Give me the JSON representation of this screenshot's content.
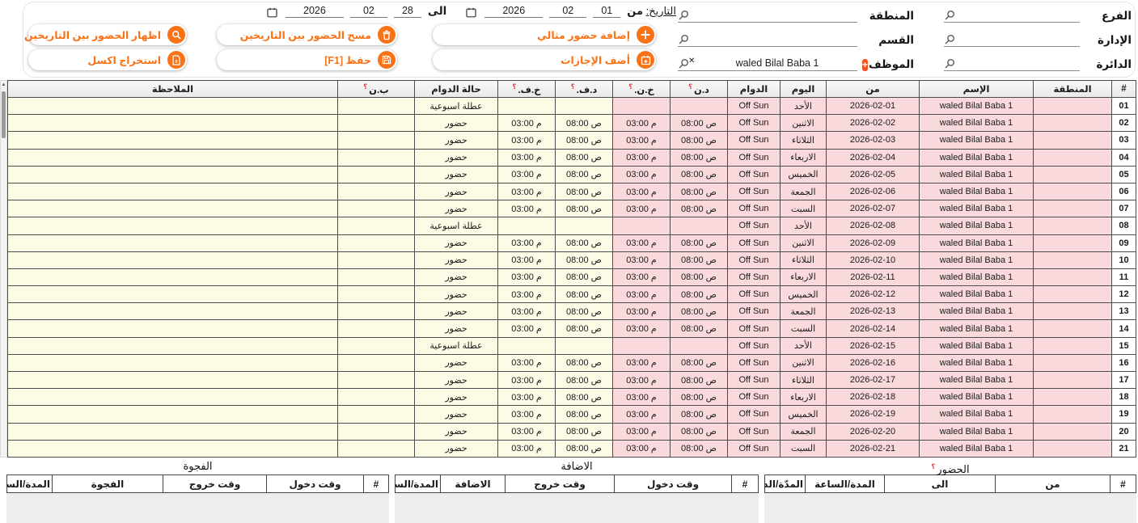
{
  "colors": {
    "accent": "#f97316",
    "pink_cell": "#f9d9dc",
    "cream_cell": "#fbfbe6",
    "required_mark": "#e53945"
  },
  "q_mark": "؟",
  "filters": {
    "branch": {
      "label": "الفرع",
      "value": ""
    },
    "administration": {
      "label": "الإدارة",
      "value": ""
    },
    "directorate": {
      "label": "الدائرة",
      "value": ""
    },
    "region": {
      "label": "المنطقة",
      "value": ""
    },
    "section": {
      "label": "القسم",
      "value": ""
    },
    "employee": {
      "label": "الموظف",
      "value": "waled Bilal Baba 1",
      "add_label": "+"
    }
  },
  "date_range": {
    "caption": "التاريخ:",
    "from_label": "من",
    "to_label": "الى",
    "from": {
      "day": "01",
      "month": "02",
      "year": "2026"
    },
    "to": {
      "day": "28",
      "month": "02",
      "year": "2026"
    }
  },
  "actions": {
    "add_ideal": "إضافة حضور مثالي",
    "add_vacations": "أضف الإجازات",
    "clear_between": "مسح الحضور بين التاريخين",
    "save": "حفظ [F1]",
    "show_between": "اظهار الحضور بين التاريخين",
    "export_excel": "استخراج اكسل"
  },
  "main_table": {
    "columns": [
      {
        "key": "num",
        "label": "#"
      },
      {
        "key": "region",
        "label": "المنطقة"
      },
      {
        "key": "name",
        "label": "الإسم"
      },
      {
        "key": "from",
        "label": "من"
      },
      {
        "key": "day",
        "label": "اليوم"
      },
      {
        "key": "shift",
        "label": "الدوام"
      },
      {
        "key": "dn",
        "label": "د.ن",
        "q": true
      },
      {
        "key": "khn",
        "label": "خ.ن.",
        "q": true
      },
      {
        "key": "df",
        "label": "د.ف.",
        "q": true
      },
      {
        "key": "khf",
        "label": "خ.ف.",
        "q": true
      },
      {
        "key": "status",
        "label": "حالة الدوام"
      },
      {
        "key": "bn",
        "label": "ب.ن",
        "q": true
      },
      {
        "key": "note",
        "label": "الملاحظة"
      }
    ],
    "rows": [
      {
        "num": "01",
        "region": "",
        "name": "waled Bilal Baba 1",
        "from": "2026-02-01",
        "day": "الأحد",
        "shift": "Off Sun",
        "dn": "",
        "khn": "",
        "df": "",
        "khf": "",
        "status": "عطلة اسبوعية",
        "bn": "",
        "note": ""
      },
      {
        "num": "02",
        "region": "",
        "name": "waled Bilal Baba 1",
        "from": "2026-02-02",
        "day": "الاثنين",
        "shift": "Off Sun",
        "dn": "ص 08:00",
        "khn": "م 03:00",
        "df": "ص 08:00",
        "khf": "م 03:00",
        "status": "حضور",
        "bn": "",
        "note": ""
      },
      {
        "num": "03",
        "region": "",
        "name": "waled Bilal Baba 1",
        "from": "2026-02-03",
        "day": "الثلاثاء",
        "shift": "Off Sun",
        "dn": "ص 08:00",
        "khn": "م 03:00",
        "df": "ص 08:00",
        "khf": "م 03:00",
        "status": "حضور",
        "bn": "",
        "note": ""
      },
      {
        "num": "04",
        "region": "",
        "name": "waled Bilal Baba 1",
        "from": "2026-02-04",
        "day": "الاربعاء",
        "shift": "Off Sun",
        "dn": "ص 08:00",
        "khn": "م 03:00",
        "df": "ص 08:00",
        "khf": "م 03:00",
        "status": "حضور",
        "bn": "",
        "note": ""
      },
      {
        "num": "05",
        "region": "",
        "name": "waled Bilal Baba 1",
        "from": "2026-02-05",
        "day": "الخميس",
        "shift": "Off Sun",
        "dn": "ص 08:00",
        "khn": "م 03:00",
        "df": "ص 08:00",
        "khf": "م 03:00",
        "status": "حضور",
        "bn": "",
        "note": ""
      },
      {
        "num": "06",
        "region": "",
        "name": "waled Bilal Baba 1",
        "from": "2026-02-06",
        "day": "الجمعة",
        "shift": "Off Sun",
        "dn": "ص 08:00",
        "khn": "م 03:00",
        "df": "ص 08:00",
        "khf": "م 03:00",
        "status": "حضور",
        "bn": "",
        "note": ""
      },
      {
        "num": "07",
        "region": "",
        "name": "waled Bilal Baba 1",
        "from": "2026-02-07",
        "day": "السبت",
        "shift": "Off Sun",
        "dn": "ص 08:00",
        "khn": "م 03:00",
        "df": "ص 08:00",
        "khf": "م 03:00",
        "status": "حضور",
        "bn": "",
        "note": ""
      },
      {
        "num": "08",
        "region": "",
        "name": "waled Bilal Baba 1",
        "from": "2026-02-08",
        "day": "الأحد",
        "shift": "Off Sun",
        "dn": "",
        "khn": "",
        "df": "",
        "khf": "",
        "status": "عطلة اسبوعية",
        "bn": "",
        "note": ""
      },
      {
        "num": "09",
        "region": "",
        "name": "waled Bilal Baba 1",
        "from": "2026-02-09",
        "day": "الاثنين",
        "shift": "Off Sun",
        "dn": "ص 08:00",
        "khn": "م 03:00",
        "df": "ص 08:00",
        "khf": "م 03:00",
        "status": "حضور",
        "bn": "",
        "note": ""
      },
      {
        "num": "10",
        "region": "",
        "name": "waled Bilal Baba 1",
        "from": "2026-02-10",
        "day": "الثلاثاء",
        "shift": "Off Sun",
        "dn": "ص 08:00",
        "khn": "م 03:00",
        "df": "ص 08:00",
        "khf": "م 03:00",
        "status": "حضور",
        "bn": "",
        "note": ""
      },
      {
        "num": "11",
        "region": "",
        "name": "waled Bilal Baba 1",
        "from": "2026-02-11",
        "day": "الاربعاء",
        "shift": "Off Sun",
        "dn": "ص 08:00",
        "khn": "م 03:00",
        "df": "ص 08:00",
        "khf": "م 03:00",
        "status": "حضور",
        "bn": "",
        "note": ""
      },
      {
        "num": "12",
        "region": "",
        "name": "waled Bilal Baba 1",
        "from": "2026-02-12",
        "day": "الخميس",
        "shift": "Off Sun",
        "dn": "ص 08:00",
        "khn": "م 03:00",
        "df": "ص 08:00",
        "khf": "م 03:00",
        "status": "حضور",
        "bn": "",
        "note": ""
      },
      {
        "num": "13",
        "region": "",
        "name": "waled Bilal Baba 1",
        "from": "2026-02-13",
        "day": "الجمعة",
        "shift": "Off Sun",
        "dn": "ص 08:00",
        "khn": "م 03:00",
        "df": "ص 08:00",
        "khf": "م 03:00",
        "status": "حضور",
        "bn": "",
        "note": ""
      },
      {
        "num": "14",
        "region": "",
        "name": "waled Bilal Baba 1",
        "from": "2026-02-14",
        "day": "السبت",
        "shift": "Off Sun",
        "dn": "ص 08:00",
        "khn": "م 03:00",
        "df": "ص 08:00",
        "khf": "م 03:00",
        "status": "حضور",
        "bn": "",
        "note": ""
      },
      {
        "num": "15",
        "region": "",
        "name": "waled Bilal Baba 1",
        "from": "2026-02-15",
        "day": "الأحد",
        "shift": "Off Sun",
        "dn": "",
        "khn": "",
        "df": "",
        "khf": "",
        "status": "عطلة اسبوعية",
        "bn": "",
        "note": ""
      },
      {
        "num": "16",
        "region": "",
        "name": "waled Bilal Baba 1",
        "from": "2026-02-16",
        "day": "الاثنين",
        "shift": "Off Sun",
        "dn": "ص 08:00",
        "khn": "م 03:00",
        "df": "ص 08:00",
        "khf": "م 03:00",
        "status": "حضور",
        "bn": "",
        "note": ""
      },
      {
        "num": "17",
        "region": "",
        "name": "waled Bilal Baba 1",
        "from": "2026-02-17",
        "day": "الثلاثاء",
        "shift": "Off Sun",
        "dn": "ص 08:00",
        "khn": "م 03:00",
        "df": "ص 08:00",
        "khf": "م 03:00",
        "status": "حضور",
        "bn": "",
        "note": ""
      },
      {
        "num": "18",
        "region": "",
        "name": "waled Bilal Baba 1",
        "from": "2026-02-18",
        "day": "الاربعاء",
        "shift": "Off Sun",
        "dn": "ص 08:00",
        "khn": "م 03:00",
        "df": "ص 08:00",
        "khf": "م 03:00",
        "status": "حضور",
        "bn": "",
        "note": ""
      },
      {
        "num": "19",
        "region": "",
        "name": "waled Bilal Baba 1",
        "from": "2026-02-19",
        "day": "الخميس",
        "shift": "Off Sun",
        "dn": "ص 08:00",
        "khn": "م 03:00",
        "df": "ص 08:00",
        "khf": "م 03:00",
        "status": "حضور",
        "bn": "",
        "note": ""
      },
      {
        "num": "20",
        "region": "",
        "name": "waled Bilal Baba 1",
        "from": "2026-02-20",
        "day": "الجمعة",
        "shift": "Off Sun",
        "dn": "ص 08:00",
        "khn": "م 03:00",
        "df": "ص 08:00",
        "khf": "م 03:00",
        "status": "حضور",
        "bn": "",
        "note": ""
      },
      {
        "num": "21",
        "region": "",
        "name": "waled Bilal Baba 1",
        "from": "2026-02-21",
        "day": "السبت",
        "shift": "Off Sun",
        "dn": "ص 08:00",
        "khn": "م 03:00",
        "df": "ص 08:00",
        "khf": "م 03:00",
        "status": "حضور",
        "bn": "",
        "note": ""
      }
    ]
  },
  "bottom_tables": [
    {
      "title": "الحضور",
      "title_q": true,
      "columns": [
        "#",
        "من",
        "الى",
        "المدة/الساعة",
        "المدّة/الدقائق"
      ],
      "rows": []
    },
    {
      "title": "الاضافة",
      "title_q": false,
      "columns": [
        "#",
        "وقت دخول",
        "وقت خروج",
        "الاضافة",
        "المدة/الساعة"
      ],
      "rows": []
    },
    {
      "title": "الفجوة",
      "title_q": false,
      "columns": [
        "#",
        "وقت دخول",
        "وقت خروج",
        "الفجوة",
        "المدة/الساعة"
      ],
      "rows": []
    }
  ]
}
